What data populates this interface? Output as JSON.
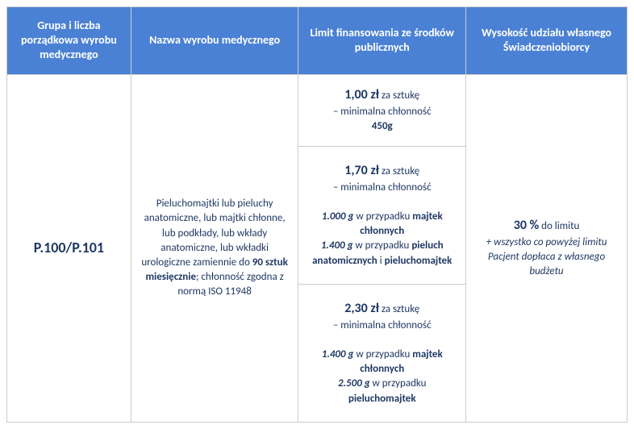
{
  "headers": {
    "col1": "Grupa i liczba porządkowa wyrobu medycznego",
    "col2": "Nazwa wyrobu medycznego",
    "col3": "Limit finansowania ze środków publicznych",
    "col4": "Wysokość udziału własnego Świadczeniobiorcy"
  },
  "group_code": "P.100/P.101",
  "product_desc": {
    "prefix": "Pieluchomajtki lub pieluchy anatomiczne, lub majtki chłonne, lub podkłady, lub wkłady anatomiczne, lub wkładki urologiczne zamiennie do ",
    "bold_qty": "90 sztuk miesięcznie",
    "suffix": "; chłonność zgodna z normą ISO 11948"
  },
  "limits": {
    "row1": {
      "price": "1,00 zł",
      "per": " za sztukę",
      "sub": "– minimalna chłonność",
      "weight": "450g"
    },
    "row2": {
      "price": "1,70 zł",
      "per": " za sztukę",
      "sub": "– minimalna chłonność",
      "w1": "1.000 g",
      "t1": " w przypadku ",
      "b1": "majtek chłonnych",
      "w2": "1.400 g",
      "t2": " w przypadku ",
      "b2": "pieluch anatomicznych",
      "and": " i ",
      "b3": "pieluchomajtek"
    },
    "row3": {
      "price": "2,30 zł",
      "per": " za sztukę",
      "sub": "– minimalna chłonność",
      "w1": "1.400 g",
      "t1": " w przypadku ",
      "b1": "majtek chłonnych",
      "w2": "2.500 g",
      "t2": " w przypadku ",
      "b2": "pieluchomajtek"
    }
  },
  "contribution": {
    "percent": "30 %",
    "to_limit": " do limitu",
    "note": "+ wszystko co powyżej limitu Pacjent dopłaca z własnego budżetu"
  }
}
